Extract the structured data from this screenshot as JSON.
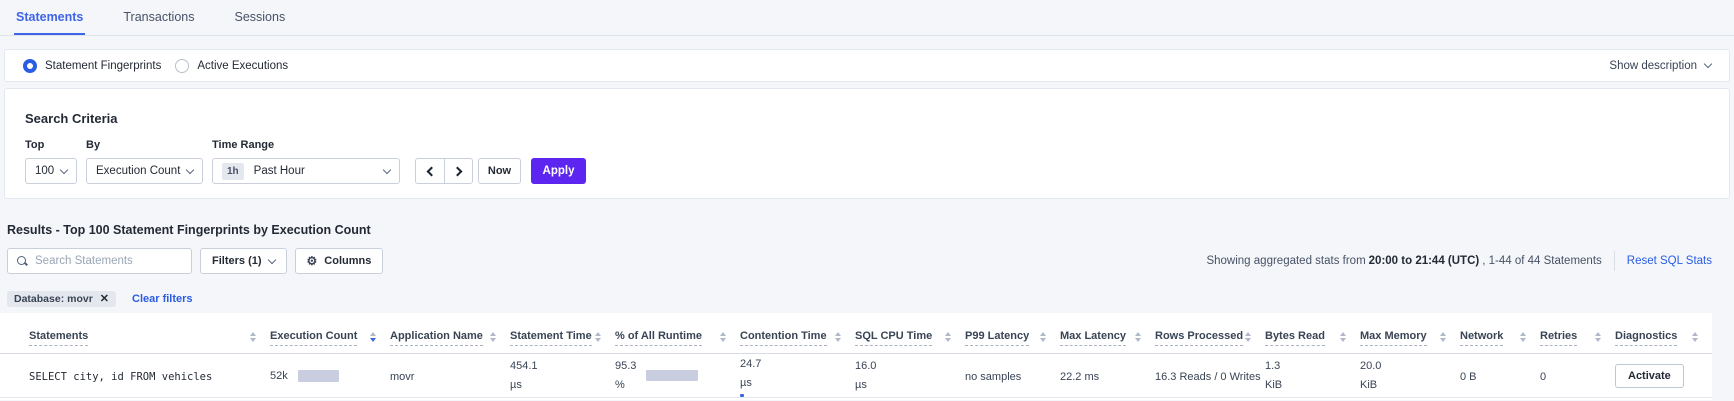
{
  "colors": {
    "tab_blue": "#3e64e8",
    "link_blue": "#2a5ce4",
    "apply_purple": "#5d26f0",
    "bar_gray": "#c8cddf",
    "bar_blue": "#3e64e8"
  },
  "tabs": {
    "items": [
      {
        "label": "Statements",
        "active": true
      },
      {
        "label": "Transactions",
        "active": false
      },
      {
        "label": "Sessions",
        "active": false
      }
    ]
  },
  "view_toggle": {
    "fingerprints_label": "Statement Fingerprints",
    "active_executions_label": "Active Executions",
    "selected": "Statement Fingerprints",
    "show_description_label": "Show description"
  },
  "search_criteria": {
    "title": "Search Criteria",
    "top_label": "Top",
    "top_value": "100",
    "by_label": "By",
    "by_value": "Execution Count",
    "time_range_label": "Time Range",
    "time_badge": "1h",
    "time_value": "Past Hour",
    "now_label": "Now",
    "apply_label": "Apply"
  },
  "results": {
    "heading": "Results - Top 100 Statement Fingerprints by Execution Count",
    "search_placeholder": "Search Statements",
    "filters_label": "Filters (1)",
    "columns_label": "Columns",
    "stats_prefix": "Showing aggregated stats from",
    "stats_range": "20:00 to 21:44 (UTC)",
    "stats_suffix": ", 1-44 of 44 Statements",
    "reset_label": "Reset SQL Stats",
    "filter_chip_label": "Database: movr",
    "clear_filters_label": "Clear filters"
  },
  "table": {
    "columns": [
      {
        "label": "Statements",
        "sorted": false
      },
      {
        "label": "Execution Count",
        "sorted": true
      },
      {
        "label": "Application Name",
        "sorted": false
      },
      {
        "label": "Statement Time",
        "sorted": false
      },
      {
        "label": "% of All Runtime",
        "sorted": false
      },
      {
        "label": "Contention Time",
        "sorted": false
      },
      {
        "label": "SQL CPU Time",
        "sorted": false
      },
      {
        "label": "P99 Latency",
        "sorted": false
      },
      {
        "label": "Max Latency",
        "sorted": false
      },
      {
        "label": "Rows Processed",
        "sorted": false
      },
      {
        "label": "Bytes Read",
        "sorted": false
      },
      {
        "label": "Max Memory",
        "sorted": false
      },
      {
        "label": "Network",
        "sorted": false
      },
      {
        "label": "Retries",
        "sorted": false
      },
      {
        "label": "Diagnostics",
        "sorted": false
      }
    ],
    "row": {
      "statement": "SELECT city, id FROM vehicles",
      "execution_count": "52k",
      "application_name": "movr",
      "statement_time_value": "454.1",
      "statement_time_unit": "µs",
      "runtime_value": "95.3",
      "runtime_unit": "%",
      "contention_value": "24.7",
      "contention_unit": "µs",
      "sql_cpu_value": "16.0",
      "sql_cpu_unit": "µs",
      "p99_latency": "no samples",
      "max_latency": "22.2 ms",
      "rows_processed": "16.3 Reads / 0 Writes",
      "bytes_read_value": "1.3",
      "bytes_read_unit": "KiB",
      "max_memory_value": "20.0",
      "max_memory_unit": "KiB",
      "network": "0 B",
      "retries": "0",
      "diagnostics_action": "Activate"
    }
  }
}
